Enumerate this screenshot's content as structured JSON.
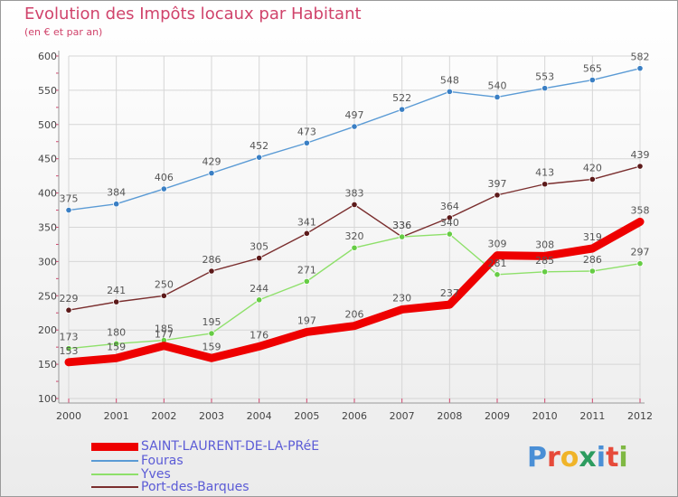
{
  "header": {
    "title": "Evolution des Impôts locaux par Habitant",
    "subtitle": "(en € et par an)"
  },
  "brand": {
    "letters": [
      "P",
      "r",
      "o",
      "x",
      "i",
      "t",
      "i"
    ],
    "colors": [
      "#4a8fd6",
      "#e64a3a",
      "#f0b429",
      "#2d9c5f",
      "#4a8fd6",
      "#e64a3a",
      "#7fb843"
    ]
  },
  "chart_data": {
    "type": "line",
    "title": "Evolution des Impôts locaux par Habitant",
    "subtitle": "(en € et par an)",
    "xlabel": "",
    "ylabel": "",
    "x": [
      "2000",
      "2001",
      "2002",
      "2003",
      "2004",
      "2005",
      "2006",
      "2007",
      "2008",
      "2009",
      "2010",
      "2011",
      "2012"
    ],
    "ylim": [
      100,
      600
    ],
    "yticks": [
      "100",
      "150",
      "200",
      "250",
      "300",
      "350",
      "400",
      "450",
      "500",
      "550",
      "600"
    ],
    "grid": true,
    "legend_position": "bottom-left",
    "series": [
      {
        "name": "SAINT-LAURENT-DE-LA-PRéE",
        "color": "#ee0000",
        "thick": true,
        "marker": false,
        "values": [
          153,
          159,
          177,
          159,
          176,
          197,
          206,
          230,
          237,
          309,
          308,
          319,
          358
        ]
      },
      {
        "name": "Fouras",
        "color": "#5b9bd5",
        "thick": false,
        "marker": true,
        "markerColor": "#3a7fc4",
        "values": [
          375,
          384,
          406,
          429,
          452,
          473,
          497,
          522,
          548,
          540,
          553,
          565,
          582
        ]
      },
      {
        "name": "Yves",
        "color": "#8ee06a",
        "thick": false,
        "marker": true,
        "markerColor": "#66cc44",
        "values": [
          173,
          180,
          185,
          195,
          244,
          271,
          320,
          336,
          340,
          281,
          285,
          286,
          297
        ]
      },
      {
        "name": "Port-des-Barques",
        "color": "#7a2e2e",
        "thick": false,
        "marker": true,
        "markerColor": "#5c1a1a",
        "values": [
          229,
          241,
          250,
          286,
          305,
          341,
          383,
          336,
          364,
          397,
          413,
          420,
          439
        ]
      }
    ]
  }
}
